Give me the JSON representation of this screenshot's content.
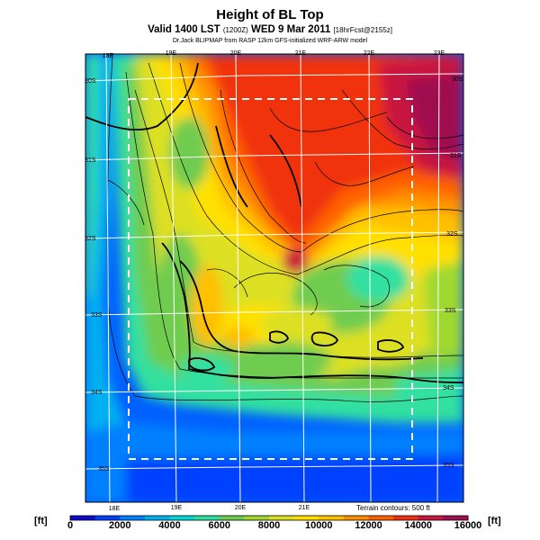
{
  "header": {
    "title": "Height of BL Top",
    "valid_prefix": "Valid 1400 LST",
    "valid_zone": "(1200Z)",
    "valid_date": "WED 9 Mar 2011",
    "valid_suffix": "[18hrFcst@2155z]",
    "credit": "Dr.Jack BLIPMAP from RASP 12km GFS-initialized WRF-ARW model"
  },
  "map": {
    "lon_labels_top": [
      "18E",
      "19E",
      "20E",
      "21E",
      "22E",
      "23E"
    ],
    "lon_labels_bottom": [
      "18E",
      "19E",
      "20E",
      "21E"
    ],
    "lat_labels_left": [
      "30S",
      "31S",
      "32S",
      "33S",
      "34S",
      "35S"
    ],
    "lat_labels_right": [
      "30S",
      "31S",
      "32S",
      "33S",
      "34S",
      "35S"
    ],
    "terrain_note": "Terrain contours: 500 ft"
  },
  "colorbar": {
    "unit_label": "[ft]",
    "ticks": [
      "0",
      "2000",
      "4000",
      "6000",
      "8000",
      "10000",
      "12000",
      "14000",
      "16000"
    ],
    "colors": [
      "#0a0ad0",
      "#0040ff",
      "#0080ff",
      "#00b0f0",
      "#00d8d8",
      "#30e0a0",
      "#70cc50",
      "#a0d830",
      "#dde020",
      "#ffe000",
      "#ffc000",
      "#ff9000",
      "#ff6000",
      "#f03010",
      "#c81840",
      "#a01050"
    ]
  }
}
